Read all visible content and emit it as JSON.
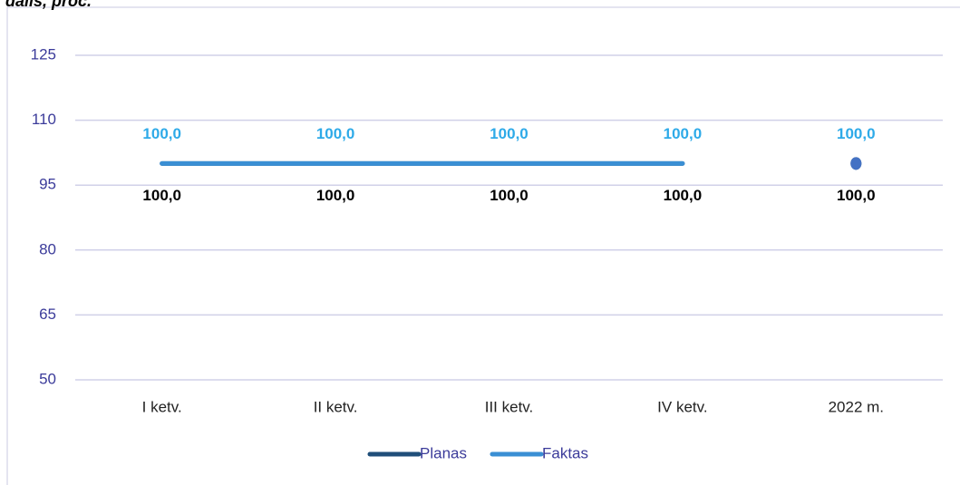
{
  "chart_data": {
    "type": "line",
    "title": "dalis, proc.",
    "categories": [
      "I ketv.",
      "II ketv.",
      "III ketv.",
      "IV ketv.",
      "2022 m."
    ],
    "line_breaks": [
      4
    ],
    "series": [
      {
        "name": "Planas",
        "color": "#1f4e79",
        "label_color": "#000000",
        "label_position": "below",
        "values": [
          100,
          100,
          100,
          100,
          100
        ],
        "value_labels": [
          "100,0",
          "100,0",
          "100,0",
          "100,0",
          "100,0"
        ]
      },
      {
        "name": "Faktas",
        "color": "#3a8fd4",
        "label_color": "#2eaae8",
        "label_position": "above",
        "values": [
          100,
          100,
          100,
          100,
          100
        ],
        "value_labels": [
          "100,0",
          "100,0",
          "100,0",
          "100,0",
          "100,0"
        ]
      }
    ],
    "ylim": [
      50,
      125
    ],
    "yticks": [
      50,
      65,
      80,
      95,
      110,
      125
    ],
    "grid": true,
    "legend": "bottom"
  }
}
